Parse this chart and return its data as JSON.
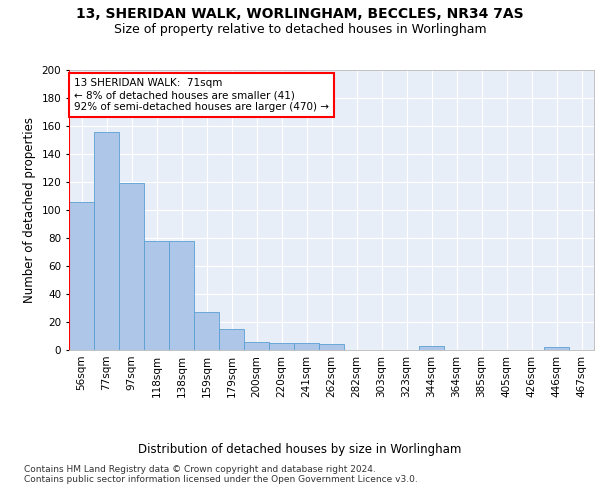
{
  "title_line1": "13, SHERIDAN WALK, WORLINGHAM, BECCLES, NR34 7AS",
  "title_line2": "Size of property relative to detached houses in Worlingham",
  "xlabel": "Distribution of detached houses by size in Worlingham",
  "ylabel": "Number of detached properties",
  "categories": [
    "56sqm",
    "77sqm",
    "97sqm",
    "118sqm",
    "138sqm",
    "159sqm",
    "179sqm",
    "200sqm",
    "220sqm",
    "241sqm",
    "262sqm",
    "282sqm",
    "303sqm",
    "323sqm",
    "344sqm",
    "364sqm",
    "385sqm",
    "405sqm",
    "426sqm",
    "446sqm",
    "467sqm"
  ],
  "values": [
    106,
    156,
    119,
    78,
    78,
    27,
    15,
    6,
    5,
    5,
    4,
    0,
    0,
    0,
    3,
    0,
    0,
    0,
    0,
    2,
    0
  ],
  "bar_color": "#aec6e8",
  "bar_edge_color": "#5a9fd4",
  "annotation_text": "13 SHERIDAN WALK:  71sqm\n← 8% of detached houses are smaller (41)\n92% of semi-detached houses are larger (470) →",
  "annotation_box_color": "white",
  "annotation_box_edge_color": "red",
  "vline_color": "red",
  "ylim": [
    0,
    200
  ],
  "yticks": [
    0,
    20,
    40,
    60,
    80,
    100,
    120,
    140,
    160,
    180,
    200
  ],
  "bg_color": "#e8eef7",
  "footer_text": "Contains HM Land Registry data © Crown copyright and database right 2024.\nContains public sector information licensed under the Open Government Licence v3.0.",
  "title_fontsize": 10,
  "subtitle_fontsize": 9,
  "xlabel_fontsize": 8.5,
  "ylabel_fontsize": 8.5,
  "tick_fontsize": 7.5,
  "footer_fontsize": 6.5,
  "annotation_fontsize": 7.5
}
